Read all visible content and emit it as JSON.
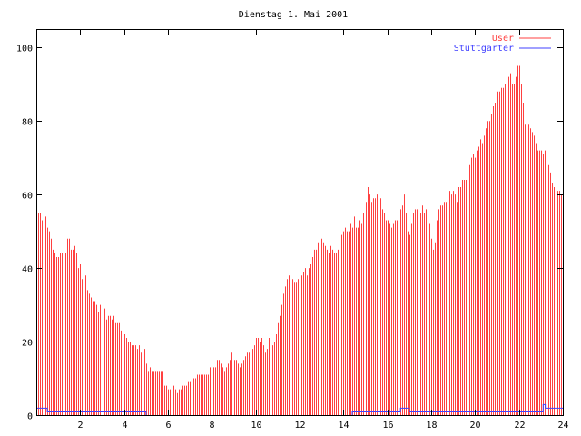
{
  "chart_data": {
    "type": "bar",
    "title": "Dienstag 1. Mai 2001",
    "xlabel": "",
    "ylabel": "",
    "xlim": [
      0,
      24
    ],
    "ylim": [
      0,
      105
    ],
    "x_step_hours": 0.0833,
    "xticks": [
      2,
      4,
      6,
      8,
      10,
      12,
      14,
      16,
      18,
      20,
      22,
      24
    ],
    "yticks": [
      0,
      20,
      40,
      60,
      80,
      100
    ],
    "grid": false,
    "legend_position": "top-right",
    "series": [
      {
        "name": "User",
        "style": "impulses",
        "color": "#ff4040",
        "values": [
          59,
          55,
          55,
          53,
          52,
          54,
          51,
          50,
          48,
          45,
          44,
          43,
          43,
          44,
          44,
          43,
          44,
          48,
          48,
          45,
          45,
          46,
          44,
          40,
          41,
          37,
          38,
          38,
          34,
          33,
          32,
          31,
          31,
          30,
          28,
          30,
          29,
          29,
          26,
          27,
          27,
          26,
          27,
          25,
          25,
          25,
          23,
          22,
          22,
          21,
          20,
          20,
          19,
          19,
          19,
          18,
          19,
          17,
          17,
          18,
          14,
          12,
          13,
          12,
          12,
          12,
          12,
          12,
          12,
          12,
          8,
          8,
          7,
          7,
          7,
          8,
          7,
          6,
          7,
          7,
          8,
          8,
          8,
          9,
          9,
          9,
          10,
          10,
          11,
          11,
          11,
          11,
          11,
          11,
          11,
          13,
          12,
          13,
          13,
          15,
          15,
          14,
          13,
          12,
          13,
          14,
          15,
          17,
          15,
          15,
          14,
          13,
          14,
          15,
          16,
          17,
          17,
          16,
          18,
          19,
          21,
          21,
          20,
          21,
          19,
          17,
          18,
          21,
          20,
          19,
          20,
          22,
          25,
          27,
          30,
          33,
          35,
          37,
          38,
          39,
          37,
          36,
          36,
          37,
          36,
          38,
          39,
          40,
          38,
          40,
          41,
          43,
          45,
          45,
          47,
          48,
          48,
          47,
          46,
          45,
          44,
          46,
          45,
          44,
          44,
          45,
          48,
          49,
          50,
          51,
          50,
          50,
          52,
          51,
          54,
          51,
          51,
          53,
          52,
          55,
          58,
          62,
          60,
          58,
          59,
          59,
          60,
          57,
          59,
          56,
          55,
          53,
          53,
          52,
          51,
          52,
          53,
          53,
          55,
          56,
          57,
          60,
          55,
          50,
          49,
          52,
          55,
          56,
          56,
          57,
          55,
          57,
          55,
          56,
          52,
          52,
          48,
          45,
          47,
          53,
          56,
          57,
          57,
          58,
          58,
          60,
          61,
          60,
          61,
          60,
          58,
          62,
          62,
          64,
          64,
          64,
          66,
          68,
          70,
          71,
          70,
          72,
          73,
          75,
          74,
          76,
          78,
          80,
          80,
          82,
          84,
          85,
          88,
          88,
          89,
          89,
          90,
          92,
          92,
          93,
          90,
          90,
          92,
          95,
          95,
          90,
          85,
          79,
          79,
          79,
          78,
          77,
          76,
          74,
          72,
          72,
          72,
          71,
          72,
          70,
          68,
          66,
          63,
          62,
          63,
          61,
          61,
          60
        ]
      },
      {
        "name": "Stuttgarter",
        "style": "steps",
        "color": "#4040ff",
        "points": [
          [
            0,
            2
          ],
          [
            0.5,
            1
          ],
          [
            5,
            0
          ],
          [
            14.4,
            1
          ],
          [
            16.6,
            2
          ],
          [
            17.0,
            1
          ],
          [
            23.1,
            3
          ],
          [
            23.2,
            2
          ],
          [
            24,
            2
          ]
        ]
      }
    ]
  }
}
